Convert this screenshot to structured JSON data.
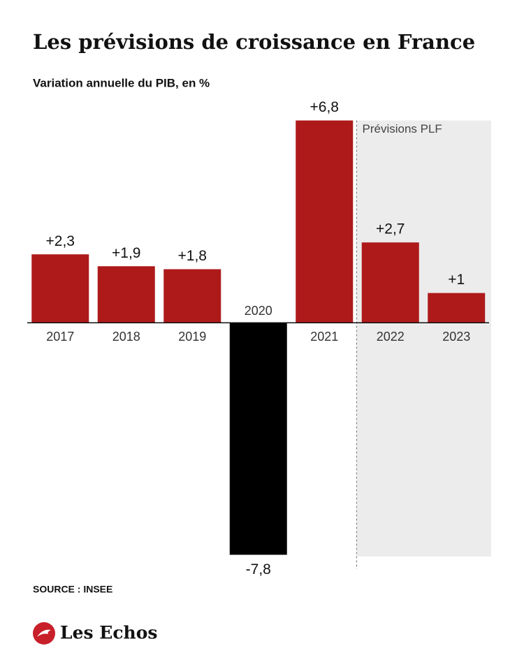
{
  "chart_data": {
    "type": "bar",
    "title": "Les prévisions de croissance en France",
    "subtitle": "Variation annuelle du PIB, en %",
    "categories": [
      "2017",
      "2018",
      "2019",
      "2020",
      "2021",
      "2022",
      "2023"
    ],
    "values": [
      2.3,
      1.9,
      1.8,
      -7.8,
      6.8,
      2.7,
      1
    ],
    "value_labels": [
      "+2,3",
      "+1,9",
      "+1,8",
      "-7,8",
      "+6,8",
      "+2,7",
      "+1"
    ],
    "colors": [
      "#ae1a1a",
      "#ae1a1a",
      "#ae1a1a",
      "#000000",
      "#ae1a1a",
      "#ae1a1a",
      "#ae1a1a"
    ],
    "ylim": [
      -8,
      7
    ],
    "forecast_from": "2022",
    "forecast_label": "Prévisions PLF",
    "source": "SOURCE : INSEE",
    "brand": "Les Echos"
  }
}
